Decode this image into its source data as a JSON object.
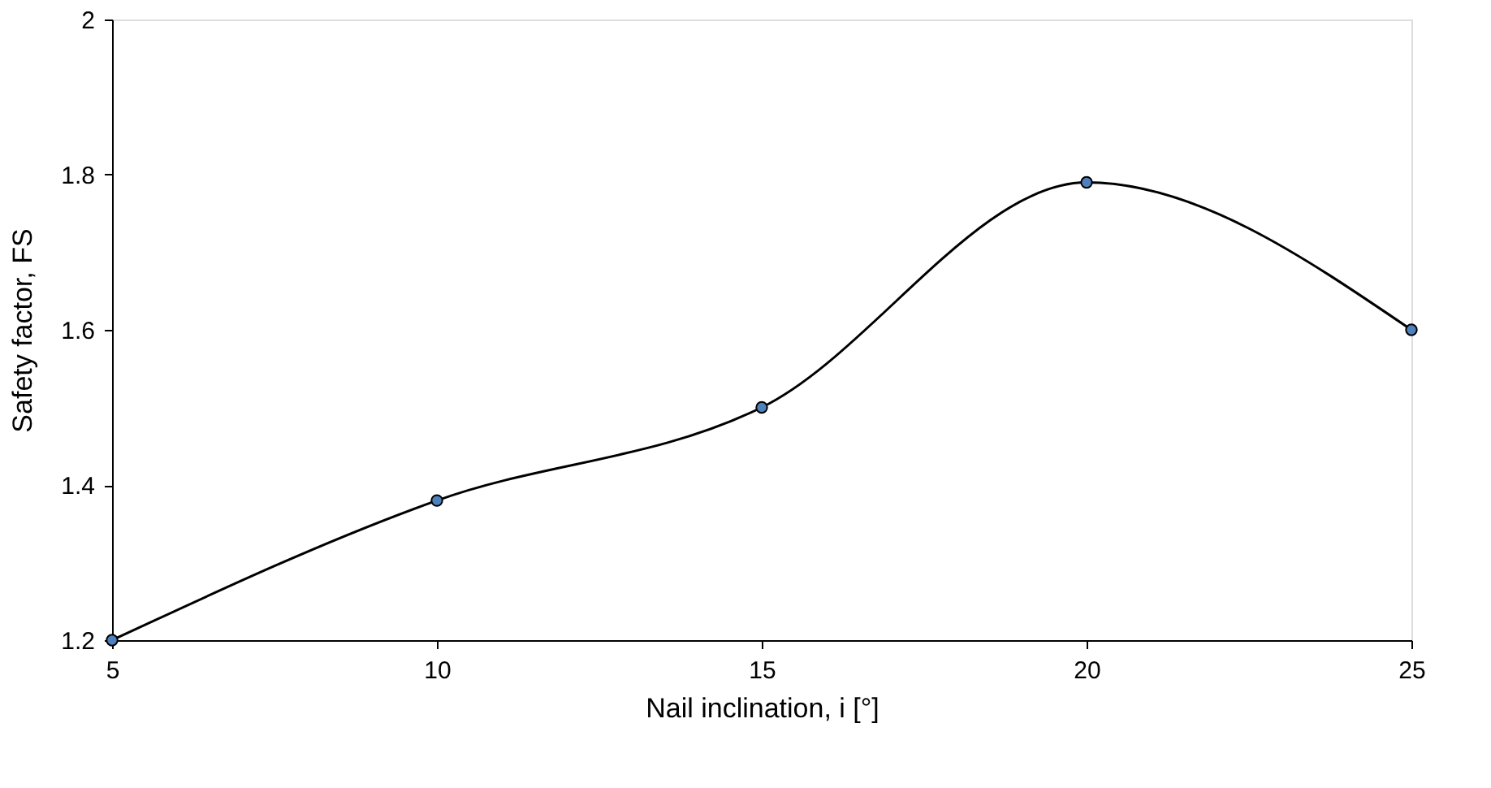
{
  "chart_data": {
    "type": "line",
    "xlabel": "Nail inclination, i [°]",
    "ylabel": "Safety factor, FS",
    "x": [
      5,
      10,
      15,
      20,
      25
    ],
    "series": [
      {
        "color": "#000000",
        "colors": [
          "#4f81bd",
          "#4f81bd",
          "#4f81bd",
          "#4f81bd",
          "#4f81bd"
        ],
        "values": [
          1.2,
          1.38,
          1.5,
          1.79,
          1.6
        ]
      }
    ],
    "xlim": [
      5,
      25
    ],
    "xticks": [
      5,
      10,
      15,
      20,
      25
    ],
    "ylim": [
      1.2,
      2
    ],
    "yticks": [
      1.2,
      1.4,
      1.6,
      1.8,
      2
    ],
    "marker": "circle",
    "line_style": "solid",
    "grid": false
  }
}
